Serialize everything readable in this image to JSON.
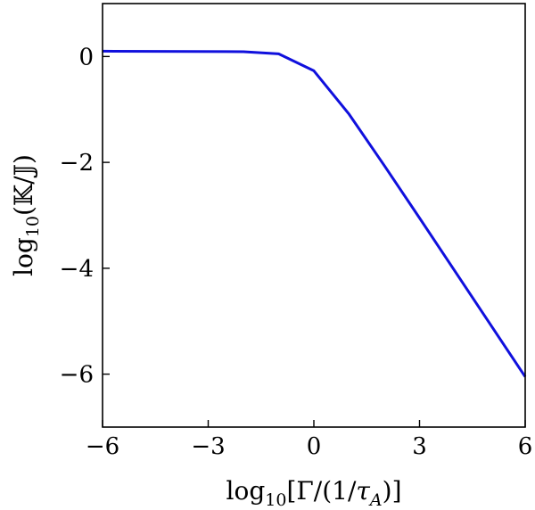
{
  "chart_data": {
    "type": "line",
    "title": "",
    "xlabel": "log10[Γ/(1/τA)]",
    "ylabel": "log10(𝕂/𝕁)",
    "xlabel_parts": {
      "pre": "log",
      "sub": "10",
      "mid": "[Γ/(1/",
      "tau": "τ",
      "tau_sub": "A",
      "post": ")]"
    },
    "ylabel_parts": {
      "pre": "log",
      "sub": "10",
      "post": "(𝕂/𝕁)"
    },
    "xlim": [
      -6,
      6
    ],
    "ylim": [
      -7,
      1
    ],
    "xticks": [
      -6,
      -3,
      0,
      3,
      6
    ],
    "xtick_labels": [
      "−6",
      "−3",
      "0",
      "3",
      "6"
    ],
    "yticks": [
      0,
      -2,
      -4,
      -6
    ],
    "ytick_labels": [
      "0",
      "−2",
      "−4",
      "−6"
    ],
    "grid": false,
    "series": [
      {
        "color": "#1010dd",
        "x": [
          -6,
          -2,
          -1,
          0,
          1,
          2,
          3,
          4,
          5,
          6
        ],
        "y": [
          0.1,
          0.09,
          0.05,
          -0.27,
          -1.09,
          -2.06,
          -3.05,
          -4.05,
          -5.05,
          -6.05
        ]
      }
    ]
  }
}
